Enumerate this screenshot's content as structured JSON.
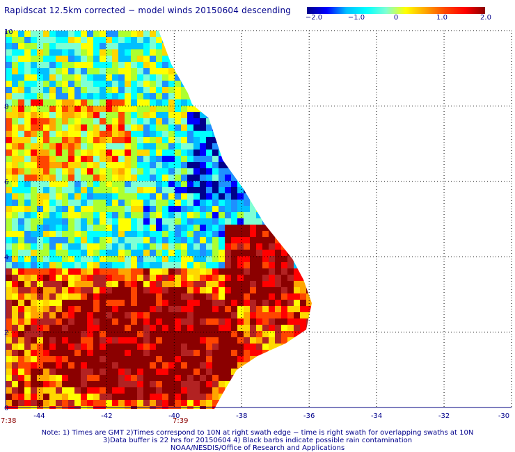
{
  "title": "Rapidscat 12.5km corrected − model winds 20150604 descending",
  "colorbar": {
    "ticks": [
      "−2.0",
      "−1.0",
      "0",
      "1.0",
      "2.0"
    ],
    "tick_values": [
      -2.0,
      -1.0,
      0,
      1.0,
      2.0
    ],
    "range": [
      -2.0,
      2.0
    ],
    "colors": [
      "#00008b",
      "#0000ff",
      "#00bfff",
      "#00ffff",
      "#7fffd4",
      "#ffff00",
      "#ffa500",
      "#ff4500",
      "#ff0000",
      "#8b0000"
    ]
  },
  "map": {
    "x_ticks": [
      "-44",
      "-42",
      "-40",
      "-38",
      "-36",
      "-34",
      "-32",
      "-30"
    ],
    "x_tick_values": [
      -44,
      -42,
      -40,
      -38,
      -36,
      -34,
      -32,
      -30
    ],
    "y_ticks": [
      "0",
      "2",
      "4",
      "6",
      "8",
      "10"
    ],
    "y_tick_values": [
      0,
      2,
      4,
      6,
      8,
      10
    ],
    "x_range": [
      -45,
      -30
    ],
    "y_range": [
      0,
      10
    ],
    "grid": "dotted",
    "time_labels": [
      "7:38",
      "7:39"
    ],
    "regions": [
      {
        "label": "swath-west",
        "dominant": "mixed cyan / yellow / red"
      },
      {
        "label": "swath-north-east-edge",
        "dominant": "blue / dark blue"
      },
      {
        "label": "swath-south-east",
        "dominant": "dark red"
      }
    ]
  },
  "notes": [
    "Note: 1) Times are GMT 2)Times correspond to 10N at right swath edge − time is right swath for overlapping swaths at 10N",
    "3)Data buffer is 22 hrs for 20150604 4) Black barbs indicate possible rain contamination",
    "NOAA/NESDIS/Office of Research and Applications"
  ]
}
